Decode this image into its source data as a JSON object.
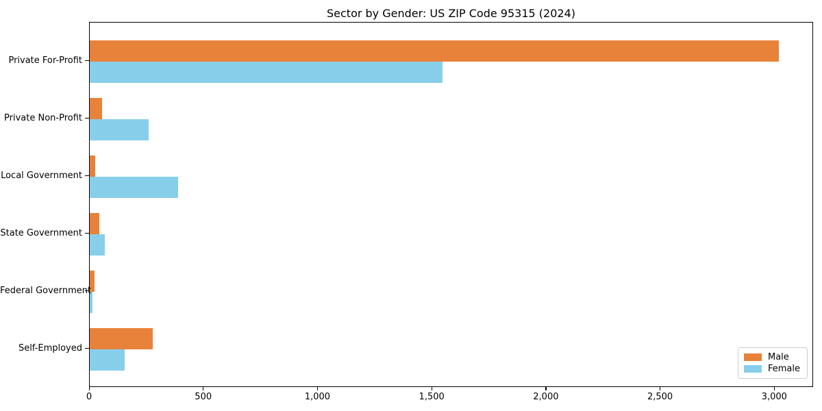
{
  "chart_data": {
    "type": "bar",
    "orientation": "horizontal",
    "title": "Sector by Gender: US ZIP Code 95315 (2024)",
    "xlabel": "",
    "ylabel": "",
    "categories": [
      "Private For-Profit",
      "Private Non-Profit",
      "Local Government",
      "State Government",
      "Federal Government",
      "Self-Employed"
    ],
    "series": [
      {
        "name": "Male",
        "color": "#E8813A",
        "values": [
          3018,
          55,
          24,
          42,
          22,
          277
        ]
      },
      {
        "name": "Female",
        "color": "#87CEEB",
        "values": [
          1545,
          258,
          387,
          67,
          12,
          153
        ]
      }
    ],
    "xlim": [
      0,
      3170
    ],
    "x_ticks": [
      {
        "value": 0,
        "label": "0"
      },
      {
        "value": 500,
        "label": "500"
      },
      {
        "value": 1000,
        "label": "1,000"
      },
      {
        "value": 1500,
        "label": "1,500"
      },
      {
        "value": 2000,
        "label": "2,000"
      },
      {
        "value": 2500,
        "label": "2,500"
      },
      {
        "value": 3000,
        "label": "3,000"
      }
    ],
    "grid": false,
    "legend": {
      "position": "lower right",
      "entries": [
        "Male",
        "Female"
      ]
    }
  }
}
